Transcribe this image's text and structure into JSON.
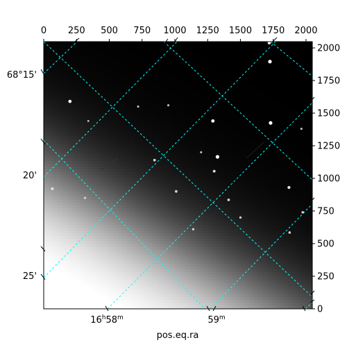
{
  "chart_data": {
    "type": "heatmap",
    "title": "",
    "xlabel": "pos.eq.ra",
    "ylabel": "",
    "pixel_axes": {
      "xlim": [
        0,
        2048
      ],
      "ylim": [
        0,
        2048
      ],
      "top_ticks": [
        "0",
        "250",
        "500",
        "750",
        "1000",
        "1250",
        "1500",
        "1750",
        "2000"
      ],
      "top_tick_values": [
        0,
        250,
        500,
        750,
        1000,
        1250,
        1500,
        1750,
        2000
      ],
      "right_ticks": [
        "0",
        "250",
        "500",
        "750",
        "1000",
        "1250",
        "1500",
        "1750",
        "2000"
      ],
      "right_tick_values": [
        0,
        250,
        500,
        750,
        1000,
        1250,
        1500,
        1750,
        2000
      ]
    },
    "world_axes": {
      "ra_ticks": [
        {
          "label": "16h58m",
          "x": 500
        },
        {
          "label": "59m",
          "x": 1310
        }
      ],
      "dec_ticks": [
        {
          "label": "68°15'",
          "y": 1800
        },
        {
          "label": "20'",
          "y": 1025
        },
        {
          "label": "25'",
          "y": 250
        }
      ]
    },
    "grid": true,
    "grid_color": "#00ffff",
    "colormap": "gray",
    "stars": [
      {
        "x": 1720,
        "y": 2040,
        "b": 0.9
      },
      {
        "x": 1725,
        "y": 1895,
        "b": 1.0
      },
      {
        "x": 200,
        "y": 1590,
        "b": 0.85
      },
      {
        "x": 1730,
        "y": 1425,
        "b": 1.0
      },
      {
        "x": 1290,
        "y": 1440,
        "b": 0.9
      },
      {
        "x": 1325,
        "y": 1165,
        "b": 1.0
      },
      {
        "x": 845,
        "y": 1140,
        "b": 0.55
      },
      {
        "x": 1300,
        "y": 1055,
        "b": 0.6
      },
      {
        "x": 1870,
        "y": 930,
        "b": 0.7
      },
      {
        "x": 1010,
        "y": 900,
        "b": 0.55
      },
      {
        "x": 65,
        "y": 920,
        "b": 0.65
      },
      {
        "x": 1410,
        "y": 835,
        "b": 0.55
      },
      {
        "x": 1975,
        "y": 740,
        "b": 0.5
      },
      {
        "x": 1875,
        "y": 585,
        "b": 0.5
      },
      {
        "x": 1500,
        "y": 700,
        "b": 0.45
      },
      {
        "x": 1140,
        "y": 610,
        "b": 0.45
      },
      {
        "x": 315,
        "y": 850,
        "b": 0.45
      },
      {
        "x": 720,
        "y": 1550,
        "b": 0.35
      },
      {
        "x": 950,
        "y": 1560,
        "b": 0.35
      },
      {
        "x": 340,
        "y": 1440,
        "b": 0.3
      },
      {
        "x": 1200,
        "y": 1200,
        "b": 0.35
      },
      {
        "x": 1965,
        "y": 1380,
        "b": 0.35
      }
    ]
  }
}
